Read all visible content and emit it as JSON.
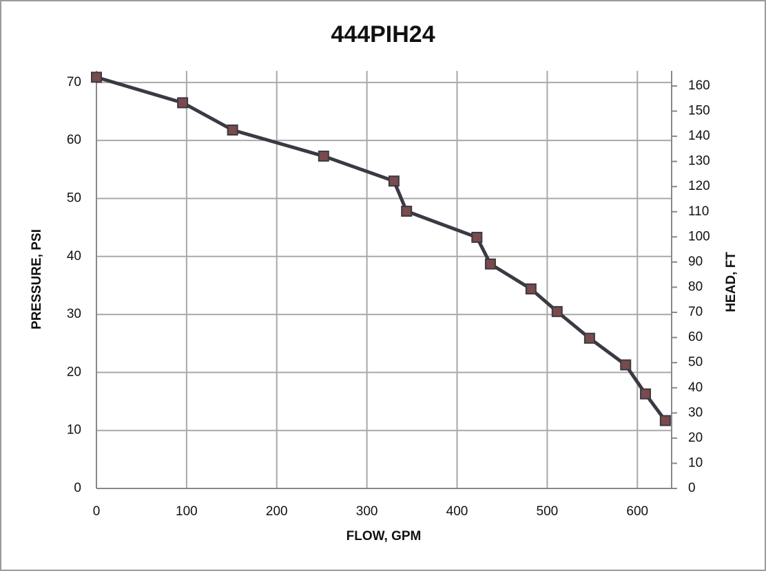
{
  "chart_data": {
    "type": "line",
    "title": "444PIH24",
    "x_label": "FLOW, GPM",
    "y_label": "PRESSURE, PSI",
    "y2_label": "HEAD, FT",
    "x": [
      0,
      95.6,
      151,
      252,
      330,
      344,
      422,
      437,
      482,
      511,
      547,
      587,
      609,
      631
    ],
    "series": [
      {
        "color": "#3b3a44",
        "marker_color": "#7a4a4c",
        "values": [
          70.9,
          66.5,
          61.8,
          57.3,
          53.0,
          47.8,
          43.3,
          38.7,
          34.4,
          30.5,
          25.9,
          21.3,
          16.3,
          11.7
        ]
      }
    ],
    "xlim": [
      0,
      638
    ],
    "xticks": [
      0,
      100,
      200,
      300,
      400,
      500,
      600
    ],
    "ylim": [
      0,
      72
    ],
    "yticks": [
      0,
      10,
      20,
      30,
      40,
      50,
      60,
      70
    ],
    "y2lim": [
      0,
      166
    ],
    "y2ticks": [
      0,
      10,
      20,
      30,
      40,
      50,
      60,
      70,
      80,
      90,
      100,
      110,
      120,
      130,
      140,
      150,
      160
    ],
    "grid": true
  }
}
